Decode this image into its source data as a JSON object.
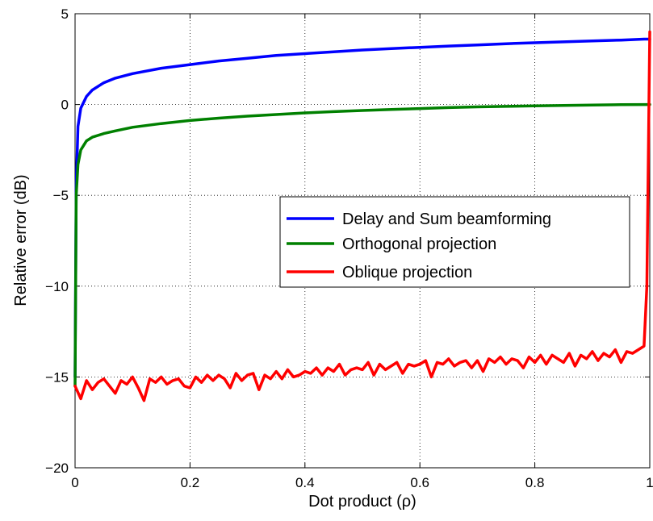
{
  "chart_data": {
    "type": "line",
    "title": "",
    "xlabel": "Dot product (ρ)",
    "ylabel": "Relative error (dB)",
    "xlim": [
      0,
      1
    ],
    "ylim": [
      -20,
      5
    ],
    "xticks": [
      0,
      0.2,
      0.4,
      0.6,
      0.8,
      1
    ],
    "xtick_labels": [
      "0",
      "0.2",
      "0.4",
      "0.6",
      "0.8",
      "1"
    ],
    "yticks": [
      -20,
      -15,
      -10,
      -5,
      0,
      5
    ],
    "ytick_labels": [
      "−20",
      "−15",
      "−10",
      "−5",
      "0",
      "5"
    ],
    "grid": true,
    "grid_style": "dotted",
    "legend_position": "center-right",
    "series": [
      {
        "name": "Delay and Sum beamforming",
        "color": "#0000ff",
        "x": [
          0,
          0.002,
          0.005,
          0.01,
          0.02,
          0.03,
          0.05,
          0.07,
          0.1,
          0.15,
          0.2,
          0.25,
          0.3,
          0.35,
          0.4,
          0.45,
          0.5,
          0.55,
          0.6,
          0.65,
          0.7,
          0.75,
          0.8,
          0.85,
          0.9,
          0.95,
          0.99,
          1.0
        ],
        "y": [
          -15,
          -4.5,
          -1.2,
          -0.2,
          0.45,
          0.8,
          1.2,
          1.45,
          1.7,
          2.0,
          2.2,
          2.4,
          2.55,
          2.7,
          2.8,
          2.9,
          3.0,
          3.08,
          3.15,
          3.22,
          3.28,
          3.35,
          3.4,
          3.45,
          3.5,
          3.55,
          3.6,
          3.6
        ]
      },
      {
        "name": "Orthogonal projection",
        "color": "#008000",
        "x": [
          0,
          0.002,
          0.005,
          0.01,
          0.02,
          0.03,
          0.05,
          0.07,
          0.1,
          0.15,
          0.2,
          0.25,
          0.3,
          0.35,
          0.4,
          0.45,
          0.5,
          0.55,
          0.6,
          0.65,
          0.7,
          0.75,
          0.8,
          0.85,
          0.9,
          0.95,
          1.0
        ],
        "y": [
          -15.5,
          -5,
          -3.3,
          -2.5,
          -2.0,
          -1.8,
          -1.6,
          -1.45,
          -1.25,
          -1.05,
          -0.88,
          -0.75,
          -0.64,
          -0.55,
          -0.46,
          -0.39,
          -0.33,
          -0.27,
          -0.22,
          -0.17,
          -0.13,
          -0.1,
          -0.07,
          -0.05,
          -0.03,
          -0.01,
          0
        ]
      },
      {
        "name": "Oblique projection",
        "color": "#ff0000",
        "x": [
          0,
          0.01,
          0.02,
          0.03,
          0.04,
          0.05,
          0.06,
          0.07,
          0.08,
          0.09,
          0.1,
          0.11,
          0.12,
          0.13,
          0.14,
          0.15,
          0.16,
          0.17,
          0.18,
          0.19,
          0.2,
          0.21,
          0.22,
          0.23,
          0.24,
          0.25,
          0.26,
          0.27,
          0.28,
          0.29,
          0.3,
          0.31,
          0.32,
          0.33,
          0.34,
          0.35,
          0.36,
          0.37,
          0.38,
          0.39,
          0.4,
          0.41,
          0.42,
          0.43,
          0.44,
          0.45,
          0.46,
          0.47,
          0.48,
          0.49,
          0.5,
          0.51,
          0.52,
          0.53,
          0.54,
          0.55,
          0.56,
          0.57,
          0.58,
          0.59,
          0.6,
          0.61,
          0.62,
          0.63,
          0.64,
          0.65,
          0.66,
          0.67,
          0.68,
          0.69,
          0.7,
          0.71,
          0.72,
          0.73,
          0.74,
          0.75,
          0.76,
          0.77,
          0.78,
          0.79,
          0.8,
          0.81,
          0.82,
          0.83,
          0.84,
          0.85,
          0.86,
          0.87,
          0.88,
          0.89,
          0.9,
          0.91,
          0.92,
          0.93,
          0.94,
          0.95,
          0.96,
          0.97,
          0.98,
          0.99,
          0.995,
          1.0
        ],
        "y": [
          -15.5,
          -16.2,
          -15.2,
          -15.7,
          -15.3,
          -15.1,
          -15.5,
          -15.9,
          -15.2,
          -15.4,
          -15.0,
          -15.6,
          -16.3,
          -15.1,
          -15.3,
          -15.0,
          -15.4,
          -15.2,
          -15.1,
          -15.5,
          -15.6,
          -15.0,
          -15.3,
          -14.9,
          -15.2,
          -14.9,
          -15.1,
          -15.6,
          -14.8,
          -15.2,
          -14.9,
          -14.8,
          -15.7,
          -14.9,
          -15.1,
          -14.7,
          -15.1,
          -14.6,
          -15.0,
          -14.9,
          -14.7,
          -14.8,
          -14.5,
          -14.9,
          -14.5,
          -14.7,
          -14.3,
          -14.9,
          -14.6,
          -14.5,
          -14.6,
          -14.2,
          -14.9,
          -14.3,
          -14.6,
          -14.4,
          -14.2,
          -14.8,
          -14.3,
          -14.4,
          -14.3,
          -14.1,
          -15.0,
          -14.2,
          -14.3,
          -14.0,
          -14.4,
          -14.2,
          -14.1,
          -14.5,
          -14.1,
          -14.7,
          -14.0,
          -14.2,
          -13.9,
          -14.3,
          -14.0,
          -14.1,
          -14.5,
          -13.9,
          -14.2,
          -13.8,
          -14.3,
          -13.8,
          -14.0,
          -14.2,
          -13.7,
          -14.4,
          -13.8,
          -14.0,
          -13.6,
          -14.1,
          -13.7,
          -13.9,
          -13.5,
          -14.2,
          -13.6,
          -13.7,
          -13.5,
          -13.3,
          -10.0,
          4.0
        ]
      }
    ]
  }
}
